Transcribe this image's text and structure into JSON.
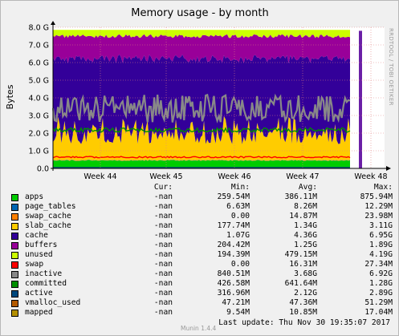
{
  "chart_data": {
    "type": "area",
    "title": "Memory usage - by month",
    "ylabel": "Bytes",
    "xlabel": "",
    "ylim": [
      0,
      8.0
    ],
    "y_unit": "G",
    "y_ticks": [
      "0.0",
      "1.0 G",
      "2.0 G",
      "3.0 G",
      "4.0 G",
      "5.0 G",
      "6.0 G",
      "7.0 G",
      "8.0 G"
    ],
    "x_ticks": [
      "Week 44",
      "Week 45",
      "Week 46",
      "Week 47",
      "Week 48"
    ],
    "grid": true,
    "side_label": "RRDTOOL / TOBI OETIKER",
    "stacked_layers_G": [
      {
        "name": "apps",
        "color": "#00cc00",
        "approx": 0.39
      },
      {
        "name": "page_tables",
        "color": "#0066b3",
        "approx": 0.01
      },
      {
        "name": "swap_cache",
        "color": "#ff8000",
        "approx": 0.02
      },
      {
        "name": "slab_cache",
        "color": "#ffcc00",
        "approx": 1.34
      },
      {
        "name": "cache",
        "color": "#330099",
        "approx": 4.36
      },
      {
        "name": "buffers",
        "color": "#990099",
        "approx": 1.25
      },
      {
        "name": "unused",
        "color": "#ccff00",
        "approx": 0.48
      }
    ],
    "line_series_G": [
      {
        "name": "inactive",
        "color": "#888888",
        "approx": 3.68
      },
      {
        "name": "committed",
        "color": "#ff0000",
        "approx": 0.64
      },
      {
        "name": "active",
        "color": "#008f00",
        "approx": 2.12
      },
      {
        "name": "vmalloc_used",
        "color": "#00487d",
        "approx": 0.05
      }
    ]
  },
  "legend": {
    "headers": {
      "cur": "Cur:",
      "min": "Min:",
      "avg": "Avg:",
      "max": "Max:"
    },
    "rows": [
      {
        "name": "apps",
        "color": "#00cc00",
        "cur": "-nan",
        "min": "259.54M",
        "avg": "386.11M",
        "max": "875.94M"
      },
      {
        "name": "page_tables",
        "color": "#0066b3",
        "cur": "-nan",
        "min": "6.63M",
        "avg": "8.26M",
        "max": "12.29M"
      },
      {
        "name": "swap_cache",
        "color": "#ff8000",
        "cur": "-nan",
        "min": "0.00",
        "avg": "14.87M",
        "max": "23.98M"
      },
      {
        "name": "slab_cache",
        "color": "#ffcc00",
        "cur": "-nan",
        "min": "177.74M",
        "avg": "1.34G",
        "max": "3.11G"
      },
      {
        "name": "cache",
        "color": "#330099",
        "cur": "-nan",
        "min": "1.07G",
        "avg": "4.36G",
        "max": "6.95G"
      },
      {
        "name": "buffers",
        "color": "#990099",
        "cur": "-nan",
        "min": "204.42M",
        "avg": "1.25G",
        "max": "1.89G"
      },
      {
        "name": "unused",
        "color": "#ccff00",
        "cur": "-nan",
        "min": "194.39M",
        "avg": "479.15M",
        "max": "4.19G"
      },
      {
        "name": "swap",
        "color": "#ff0000",
        "cur": "-nan",
        "min": "0.00",
        "avg": "16.31M",
        "max": "27.34M"
      },
      {
        "name": "inactive",
        "color": "#888888",
        "cur": "-nan",
        "min": "840.51M",
        "avg": "3.68G",
        "max": "6.92G"
      },
      {
        "name": "committed",
        "color": "#008f00",
        "cur": "-nan",
        "min": "426.58M",
        "avg": "641.64M",
        "max": "1.28G"
      },
      {
        "name": "active",
        "color": "#00487d",
        "cur": "-nan",
        "min": "316.96M",
        "avg": "2.12G",
        "max": "2.89G"
      },
      {
        "name": "vmalloc_used",
        "color": "#b35a00",
        "cur": "-nan",
        "min": "47.21M",
        "avg": "47.36M",
        "max": "51.29M"
      },
      {
        "name": "mapped",
        "color": "#b38f00",
        "cur": "-nan",
        "min": "9.54M",
        "avg": "10.85M",
        "max": "17.04M"
      }
    ]
  },
  "footer": {
    "version": "Munin 1.4.4",
    "last_update": "Last update:  Thu Nov 30 19:35:07 2017"
  }
}
